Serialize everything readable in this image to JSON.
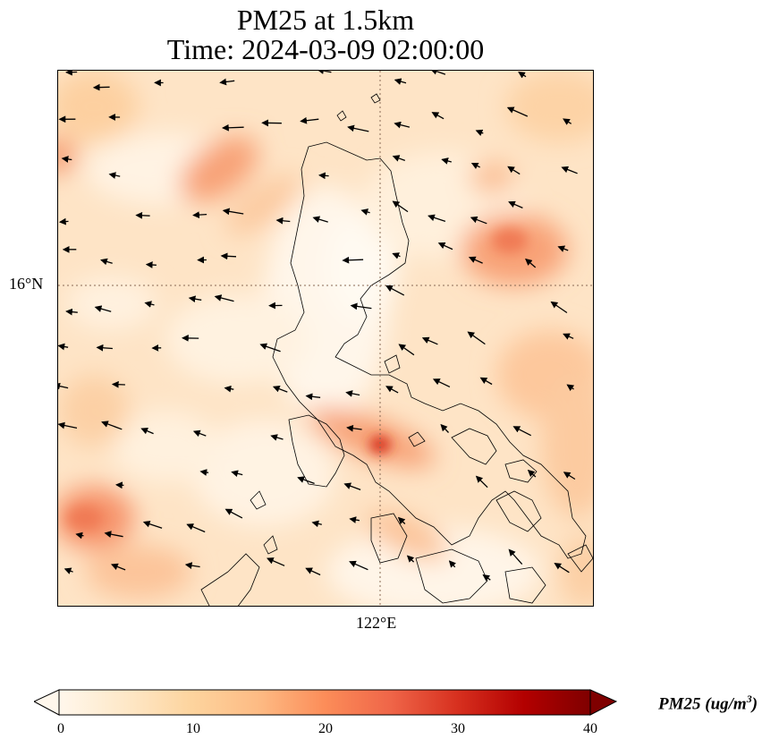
{
  "title_line1": "PM25 at 1.5km",
  "title_line2": "Time: 2024-03-09 02:00:00",
  "map": {
    "lat_label": "16°N",
    "lon_label": "122°E",
    "gridline_color": "#8a6a55"
  },
  "colorbar": {
    "label_prefix": "PM25 (ug/m",
    "label_exp": "3",
    "label_suffix": ")",
    "ticks": [
      "0",
      "10",
      "20",
      "30",
      "40"
    ],
    "vmin": 0,
    "vmax": 40,
    "colormap": [
      "#fff7ec",
      "#fee8c8",
      "#fdd49e",
      "#fdbb84",
      "#fc8d59",
      "#ef6548",
      "#d7301f",
      "#b30000",
      "#7f0000"
    ]
  }
}
